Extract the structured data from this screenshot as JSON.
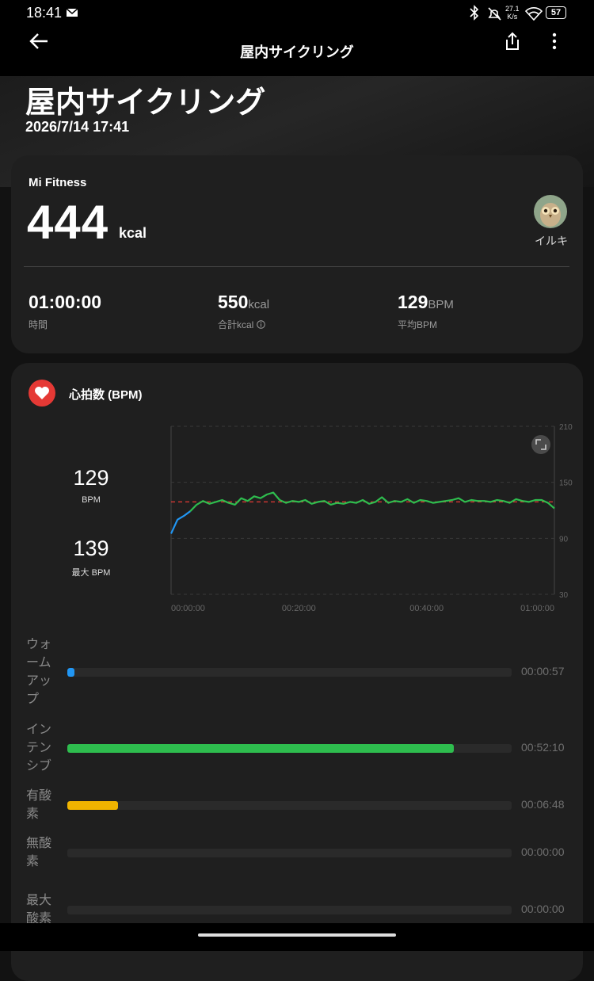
{
  "status_bar": {
    "time": "18:41",
    "net_speed": "27.1",
    "net_unit": "K/s",
    "battery": 57
  },
  "header": {
    "title": "屋内サイクリング"
  },
  "hero": {
    "title": "屋内サイクリング",
    "datetime": "2026/7/14 17:41"
  },
  "summary": {
    "source": "Mi Fitness",
    "calories": 444,
    "calories_unit": "kcal",
    "user": "イルキ",
    "stats": [
      {
        "value": "01:00:00",
        "label": "時間"
      },
      {
        "value": 550,
        "unit": "kcal",
        "label": "合計kcal"
      },
      {
        "value": 129,
        "unit": "BPM",
        "label": "平均BPM"
      }
    ]
  },
  "heart_rate": {
    "title": "心拍数 (BPM)",
    "average": 129,
    "average_unit": "BPM",
    "max": 139,
    "max_label": "最大 BPM"
  },
  "chart_data": [
    {
      "type": "line",
      "x": [
        0,
        1,
        2,
        3,
        4,
        5,
        6,
        7,
        8,
        9,
        10,
        11,
        12,
        13,
        14,
        15,
        16,
        17,
        18,
        19,
        20,
        21,
        22,
        23,
        24,
        25,
        26,
        27,
        28,
        29,
        30,
        31,
        32,
        33,
        34,
        35,
        36,
        37,
        38,
        39,
        40,
        41,
        42,
        43,
        44,
        45,
        46,
        47,
        48,
        49,
        50,
        51,
        52,
        53,
        54,
        55,
        56,
        57,
        58,
        59,
        60
      ],
      "series": [
        {
          "color": "#2196f3",
          "values": [
            95,
            110,
            114,
            119,
            null,
            null,
            null,
            null,
            null,
            null,
            null,
            null,
            null,
            null,
            null,
            null,
            null,
            null,
            null,
            null,
            null,
            null,
            null,
            null,
            null,
            null,
            null,
            null,
            null,
            null,
            null,
            null,
            null,
            null,
            null,
            null,
            null,
            null,
            null,
            null,
            null,
            null,
            null,
            null,
            null,
            null,
            null,
            null,
            null,
            null,
            null,
            null,
            null,
            null,
            null,
            null,
            null,
            null,
            null,
            null,
            null
          ]
        },
        {
          "color": "#2ebd4e",
          "values": [
            null,
            null,
            null,
            119,
            126,
            130,
            127,
            129,
            131,
            128,
            126,
            133,
            130,
            135,
            133,
            137,
            139,
            131,
            128,
            130,
            129,
            131,
            127,
            129,
            130,
            126,
            128,
            127,
            129,
            128,
            131,
            127,
            129,
            134,
            128,
            130,
            129,
            132,
            128,
            131,
            130,
            128,
            129,
            130,
            131,
            133,
            129,
            131,
            130,
            130,
            129,
            131,
            130,
            128,
            132,
            130,
            129,
            131,
            131,
            128,
            122
          ]
        }
      ],
      "average_line": 129,
      "average_color": "#e53935",
      "xlim": [
        0,
        60
      ],
      "xticks": [
        {
          "value": 0,
          "label": "00:00:00"
        },
        {
          "value": 20,
          "label": "00:20:00"
        },
        {
          "value": 40,
          "label": "00:40:00"
        },
        {
          "value": 60,
          "label": "01:00:00"
        }
      ],
      "ylim": [
        30,
        210
      ],
      "yticks": [
        30,
        90,
        150,
        210
      ],
      "grid": true
    },
    {
      "type": "bar",
      "orientation": "horizontal",
      "categories": [
        "ウォームアップ",
        "インテンシブ",
        "有酸素",
        "無酸素",
        "最大酸素"
      ],
      "values": [
        57,
        3130,
        408,
        0,
        0
      ],
      "value_labels": [
        "00:00:57",
        "00:52:10",
        "00:06:48",
        "00:00:00",
        "00:00:00"
      ],
      "colors": [
        "#2196f3",
        "#2ebd4e",
        "#f0b400",
        "#e53935",
        "#9c27b0"
      ],
      "xlim": [
        0,
        3600
      ]
    }
  ]
}
